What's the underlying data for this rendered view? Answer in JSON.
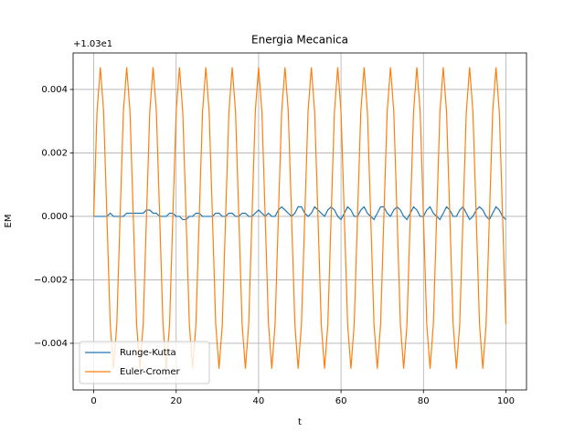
{
  "chart_data": {
    "type": "line",
    "title": "Energia Mecanica",
    "xlabel": "t",
    "ylabel": "EM",
    "offset_text": "+1.03e1",
    "x": [
      0,
      0.8,
      1.6,
      2.4,
      3.2,
      4,
      4.8,
      5.6,
      6.4,
      7.2,
      8,
      8.8,
      9.6,
      10.4,
      11.2,
      12,
      12.8,
      13.6,
      14.4,
      15.2,
      16,
      16.8,
      17.6,
      18.4,
      19.2,
      20,
      20.8,
      21.6,
      22.4,
      23.2,
      24,
      24.8,
      25.6,
      26.4,
      27.2,
      28,
      28.8,
      29.6,
      30.4,
      31.2,
      32,
      32.8,
      33.6,
      34.4,
      35.2,
      36,
      36.8,
      37.6,
      38.4,
      39.2,
      40,
      40.8,
      41.6,
      42.4,
      43.2,
      44,
      44.8,
      45.6,
      46.4,
      47.2,
      48,
      48.8,
      49.6,
      50.4,
      51.2,
      52,
      52.8,
      53.6,
      54.4,
      55.2,
      56,
      56.8,
      57.6,
      58.4,
      59.2,
      60,
      60.8,
      61.6,
      62.4,
      63.2,
      64,
      64.8,
      65.6,
      66.4,
      67.2,
      68,
      68.8,
      69.6,
      70.4,
      71.2,
      72,
      72.8,
      73.6,
      74.4,
      75.2,
      76,
      76.8,
      77.6,
      78.4,
      79.2,
      80,
      80.8,
      81.6,
      82.4,
      83.2,
      84,
      84.8,
      85.6,
      86.4,
      87.2,
      88,
      88.8,
      89.6,
      90.4,
      91.2,
      92,
      92.8,
      93.6,
      94.4,
      95.2,
      96,
      96.8,
      97.6,
      98.4,
      99.2,
      100
    ],
    "series": [
      {
        "name": "Runge-Kutta",
        "color": "#1f77b4",
        "values": [
          0,
          0,
          0,
          0,
          0,
          0.0001,
          0,
          0,
          0,
          0,
          0.0001,
          0.0001,
          0.0001,
          0.0001,
          0.0001,
          0.0001,
          0.0002,
          0.0002,
          0.0001,
          0.0001,
          0,
          0,
          0,
          0.0001,
          0.0001,
          0,
          0,
          -0.0001,
          -0.0001,
          0,
          0,
          0.0001,
          0.0001,
          0,
          0,
          0,
          0,
          0.0001,
          0.0001,
          0,
          0,
          0.0001,
          0.0001,
          0,
          0,
          0.0001,
          0.0001,
          0,
          0,
          0.0001,
          0.0002,
          0.0001,
          0,
          0.0001,
          0,
          0,
          0.0002,
          0.0003,
          0.0002,
          0.0001,
          0,
          0.0001,
          0.0003,
          0.0003,
          0.0001,
          0,
          0.0001,
          0.0003,
          0.0002,
          0.0001,
          0,
          0.0002,
          0.0003,
          0.0002,
          0,
          -0.0001,
          0.0001,
          0.0003,
          0.0002,
          0,
          0,
          0.0002,
          0.0003,
          0.0001,
          0,
          -0.0001,
          0.0001,
          0.0003,
          0.0003,
          0.0001,
          0,
          0.0002,
          0.0003,
          0.0002,
          0,
          -0.0001,
          0.0001,
          0.0003,
          0.0002,
          0,
          0,
          0.0002,
          0.0003,
          0.0001,
          0,
          -0.0001,
          0.0001,
          0.0003,
          0.0002,
          0,
          0,
          0.0002,
          0.0003,
          0.0001,
          -0.0001,
          0,
          0.0002,
          0.0003,
          0.0002,
          0,
          -0.0001,
          0.0001,
          0.0003,
          0.0002,
          0,
          -0.0001
        ]
      },
      {
        "name": "Euler-Cromer",
        "color": "#ff7f0e",
        "values": [
          0,
          0.0033,
          0.0047,
          0.0033,
          0,
          -0.0034,
          -0.0048,
          -0.0034,
          0,
          0.0033,
          0.0047,
          0.0033,
          0,
          -0.0034,
          -0.0048,
          -0.0034,
          0,
          0.0033,
          0.0047,
          0.0033,
          0,
          -0.0034,
          -0.0048,
          -0.0034,
          0,
          0.0033,
          0.0047,
          0.0033,
          0,
          -0.0034,
          -0.0048,
          -0.0034,
          0,
          0.0033,
          0.0047,
          0.0033,
          0,
          -0.0034,
          -0.0048,
          -0.0034,
          0,
          0.0033,
          0.0047,
          0.0033,
          0,
          -0.0034,
          -0.0048,
          -0.0034,
          0,
          0.0033,
          0.0047,
          0.0033,
          0,
          -0.0034,
          -0.0048,
          -0.0034,
          0,
          0.0033,
          0.0047,
          0.0033,
          0,
          -0.0034,
          -0.0048,
          -0.0034,
          0,
          0.0033,
          0.0047,
          0.0033,
          0,
          -0.0034,
          -0.0048,
          -0.0034,
          0,
          0.0033,
          0.0047,
          0.0033,
          0,
          -0.0034,
          -0.0048,
          -0.0034,
          0,
          0.0033,
          0.0047,
          0.0033,
          0,
          -0.0034,
          -0.0048,
          -0.0034,
          0,
          0.0033,
          0.0047,
          0.0033,
          0,
          -0.0034,
          -0.0048,
          -0.0034,
          0,
          0.0033,
          0.0047,
          0.0033,
          0,
          -0.0034,
          -0.0048,
          -0.0034,
          0,
          0.0033,
          0.0047,
          0.0033,
          0,
          -0.0034,
          -0.0048,
          -0.0034,
          0,
          0.0033,
          0.0047,
          0.0033,
          0,
          -0.0034,
          -0.0048,
          -0.0034,
          0,
          0.0033,
          0.0047,
          0.0033,
          0,
          -0.0034
        ]
      }
    ],
    "xlim": [
      -5,
      105
    ],
    "ylim": [
      -0.00547,
      0.00515
    ],
    "xticks": [
      0,
      20,
      40,
      60,
      80,
      100
    ],
    "yticks": [
      {
        "value": -0.004,
        "label": "−0.004"
      },
      {
        "value": -0.002,
        "label": "−0.002"
      },
      {
        "value": 0,
        "label": "0.000"
      },
      0.002,
      0.004
    ],
    "grid": true,
    "legend": "lower left"
  }
}
